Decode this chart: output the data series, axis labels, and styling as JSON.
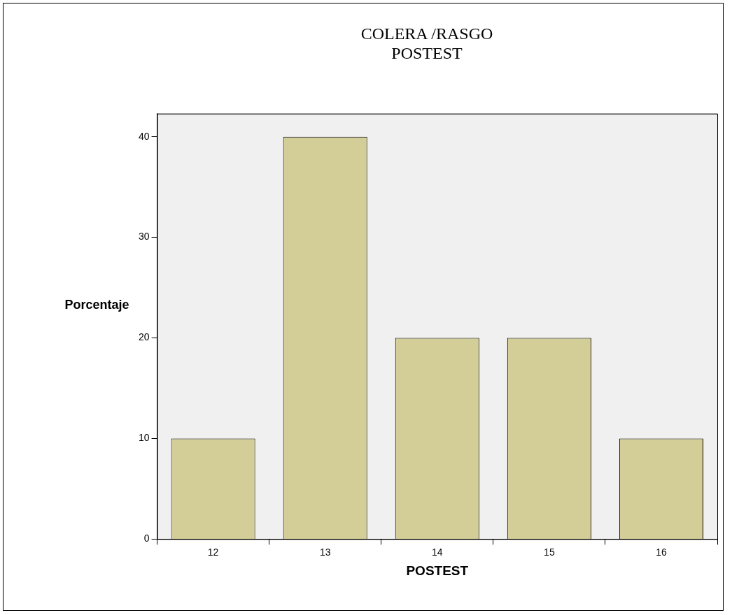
{
  "chart_data": {
    "type": "bar",
    "title": "COLERA /RASGO\nPOSTEST",
    "xlabel": "POSTEST",
    "ylabel": "Porcentaje",
    "categories": [
      "12",
      "13",
      "14",
      "15",
      "16"
    ],
    "values": [
      10,
      40,
      20,
      20,
      10
    ],
    "color": "#d3ce97",
    "ylim": [
      0,
      42.3
    ],
    "yticks": [
      0,
      10,
      20,
      30,
      40
    ],
    "grid": false,
    "legend": false
  }
}
